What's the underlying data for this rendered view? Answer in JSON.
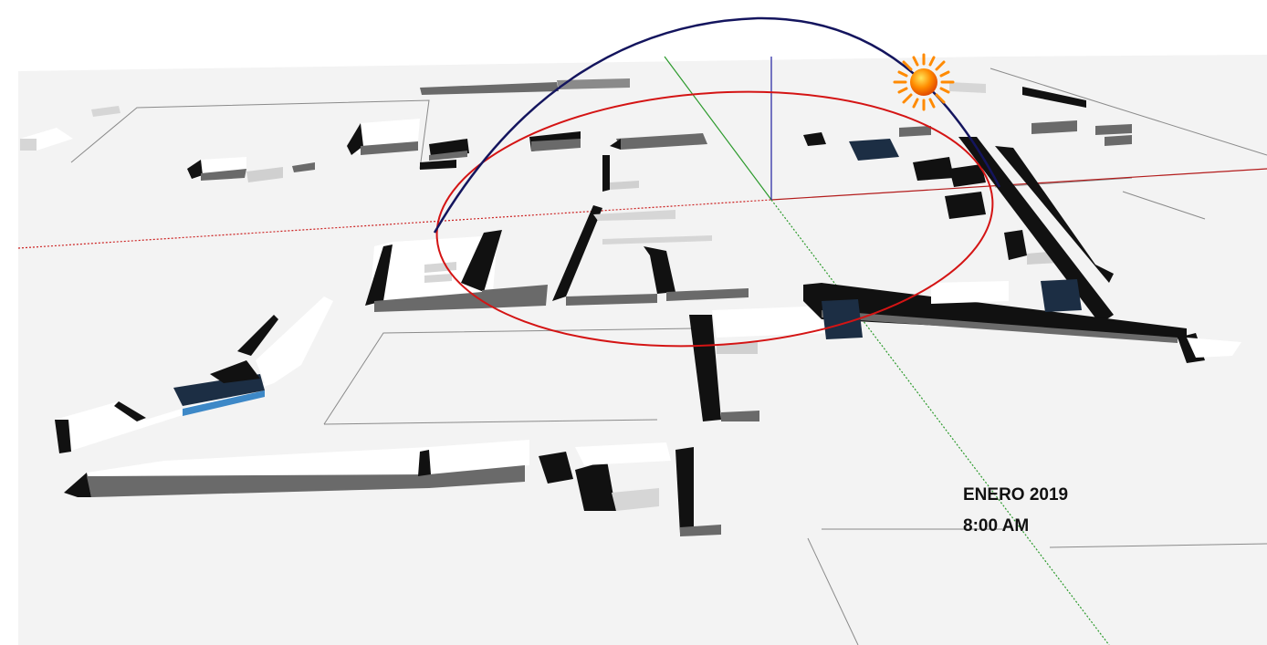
{
  "caption": {
    "month_year": "ENERO 2019",
    "time": "8:00 AM"
  },
  "colors": {
    "ground": "#f3f3f3",
    "roof": "#ffffff",
    "shadow": "#111111",
    "wall_gray": "#6a6a6a",
    "wall_light": "#d9d9d9",
    "sun_path_arc": "#14155e",
    "horizon_circle": "#d41414",
    "axis_red": "#b31b1b",
    "axis_green": "#2c9a2c",
    "axis_blue": "#1f1fa0",
    "highlight_roof": "#1c2e44",
    "highlight_wall": "#3d88c7",
    "sun_core": "#ff7a00",
    "sun_rays": "#ff8a00"
  },
  "icons": [
    "sun-icon"
  ]
}
